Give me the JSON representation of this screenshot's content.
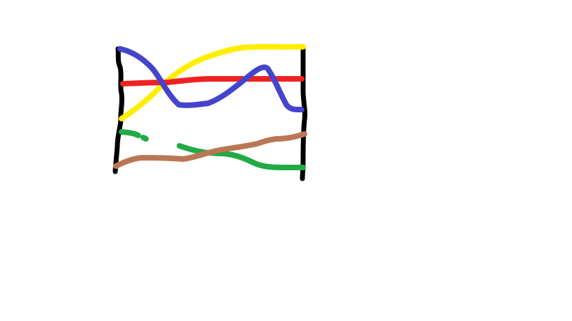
{
  "colors": {
    "axes": "#000000",
    "yellow": "#ffee00",
    "red": "#ee2222",
    "blue": "#4444cc",
    "green": "#22aa44",
    "brown": "#bb7755"
  },
  "strokes": [
    {
      "id": "yellow-line",
      "color_key": "yellow"
    },
    {
      "id": "red-line",
      "color_key": "red"
    },
    {
      "id": "blue-line",
      "color_key": "blue"
    },
    {
      "id": "green-line",
      "color_key": "green"
    },
    {
      "id": "brown-line",
      "color_key": "brown"
    }
  ]
}
